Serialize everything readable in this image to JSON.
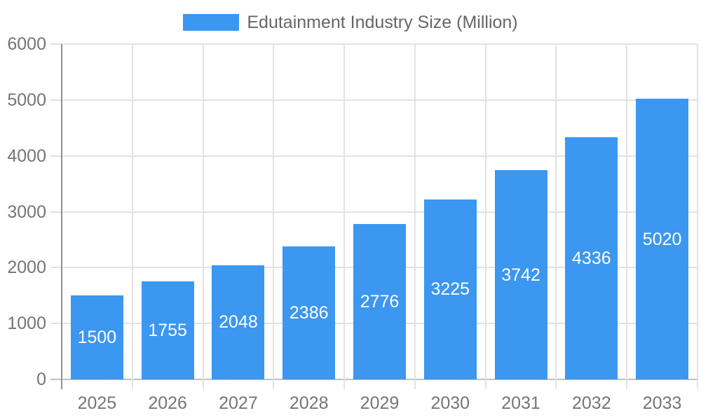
{
  "chart_data": {
    "type": "bar",
    "title": "Edutainment Industry Size (Million)",
    "categories": [
      "2025",
      "2026",
      "2027",
      "2028",
      "2029",
      "2030",
      "2031",
      "2032",
      "2033"
    ],
    "values": [
      1500,
      1755,
      2048,
      2386,
      2776,
      3225,
      3742,
      4336,
      5020
    ],
    "yticks": [
      0,
      1000,
      2000,
      3000,
      4000,
      5000,
      6000
    ],
    "ylim": [
      0,
      6000
    ],
    "grid": true,
    "legend_position": "top",
    "bar_color": "#3b97f0",
    "value_label_color": "#ffffff",
    "axis_label_color": "#757575",
    "legend_text_color": "#666666",
    "gridline_color": "#e2e2e2",
    "baseline_color": "#c0c0c0",
    "axis_line_color": "#909090"
  }
}
